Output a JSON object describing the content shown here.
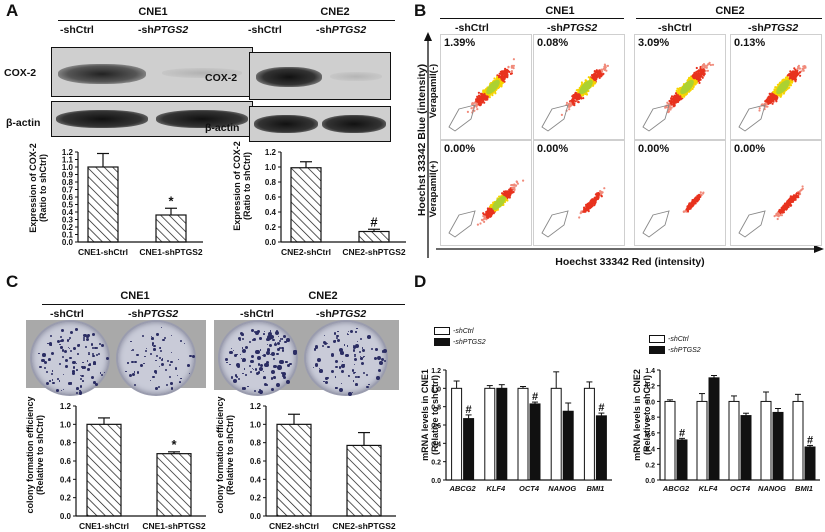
{
  "panels": {
    "a": "A",
    "b": "B",
    "c": "C",
    "d": "D"
  },
  "panel_a": {
    "cne1": {
      "group": "CNE1",
      "col1": "-shCtrl",
      "col2_prefix": "-sh",
      "col2_gene": "PTGS2",
      "row1": "COX-2",
      "row2": "β-actin"
    },
    "cne2": {
      "group": "CNE2",
      "col1": "-shCtrl",
      "col2_prefix": "-sh",
      "col2_gene": "PTGS2",
      "row1": "COX-2",
      "row2": "β-actin"
    },
    "ylabel_line1": "Expression of COX-2",
    "ylabel_line2": "(Ratio to shCtrl)"
  },
  "panel_b": {
    "group1": "CNE1",
    "group2": "CNE2",
    "cols": [
      "-shCtrl",
      "-shPTGS2",
      "-shCtrl",
      "-shPTGS2"
    ],
    "col_prefix": "-sh",
    "col_gene": "PTGS2",
    "col_ctrl": "-shCtrl",
    "row_top": "Verapamil(-)",
    "row_bottom": "Verapamil(+)",
    "yaxis": "Hoechst 33342 Blue (intensity)",
    "xaxis": "Hoechst 33342 Red (intensity)",
    "pct_top": [
      "1.39%",
      "0.08%",
      "3.09%",
      "0.13%"
    ],
    "pct_bottom": [
      "0.00%",
      "0.00%",
      "0.00%",
      "0.00%"
    ]
  },
  "panel_c": {
    "cne1": {
      "group": "CNE1",
      "col1": "-shCtrl",
      "col2_prefix": "-sh",
      "col2_gene": "PTGS2"
    },
    "cne2": {
      "group": "CNE2",
      "col1": "-shCtrl",
      "col2_prefix": "-sh",
      "col2_gene": "PTGS2"
    },
    "ylabel_line1": "colony formation efficiency",
    "ylabel_line2": "(Relative to shCtrl)"
  },
  "panel_d": {
    "legend_ctrl": "-shCtrl",
    "legend_sh": "-shPTGS2",
    "ylabel_cne1_line1": "mRNA levels in CNE1",
    "ylabel_cne2_line1": "mRNA levels in CNE2",
    "ylabel_line2": "(Relative to shCtrl)"
  },
  "chart_data": [
    {
      "id": "a_cne1",
      "type": "bar",
      "categories": [
        "CNE1-shCtrl",
        "CNE1-shPTGS2"
      ],
      "values": [
        1.0,
        0.36
      ],
      "errors": [
        0.18,
        0.09
      ],
      "marks": [
        "",
        "*"
      ],
      "ylim": [
        0.0,
        1.2
      ],
      "yticks": [
        "0.0",
        "0.1",
        "0.2",
        "0.3",
        "0.4",
        "0.5",
        "0.6",
        "0.7",
        "0.8",
        "0.9",
        "1.0",
        "1.1",
        "1.2"
      ],
      "ylabel": "Expression of COX-2 (Ratio to shCtrl)"
    },
    {
      "id": "a_cne2",
      "type": "bar",
      "categories": [
        "CNE2-shCtrl",
        "CNE2-shPTGS2"
      ],
      "values": [
        0.99,
        0.14
      ],
      "errors": [
        0.08,
        0.03
      ],
      "marks": [
        "",
        "#"
      ],
      "ylim": [
        0.0,
        1.2
      ],
      "yticks": [
        "0.0",
        "0.2",
        "0.4",
        "0.6",
        "0.8",
        "1.0",
        "1.2"
      ],
      "ylabel": "Expression of COX-2 (Ratio to shCtrl)"
    },
    {
      "id": "c_cne1",
      "type": "bar",
      "categories": [
        "CNE1-shCtrl",
        "CNE1-shPTGS2"
      ],
      "values": [
        1.0,
        0.68
      ],
      "errors": [
        0.07,
        0.02
      ],
      "marks": [
        "",
        "*"
      ],
      "ylim": [
        0.0,
        1.2
      ],
      "yticks": [
        "0.0",
        "0.2",
        "0.4",
        "0.6",
        "0.8",
        "1.0",
        "1.2"
      ],
      "ylabel": "colony formation efficiency (Relative to shCtrl)"
    },
    {
      "id": "c_cne2",
      "type": "bar",
      "categories": [
        "CNE2-shCtrl",
        "CNE2-shPTGS2"
      ],
      "values": [
        1.0,
        0.77
      ],
      "errors": [
        0.11,
        0.14
      ],
      "marks": [
        "",
        ""
      ],
      "ylim": [
        0.0,
        1.2
      ],
      "yticks": [
        "0.0",
        "0.2",
        "0.4",
        "0.6",
        "0.8",
        "1.0",
        "1.2"
      ],
      "ylabel": "colony formation efficiency (Relative to shCtrl)"
    },
    {
      "id": "d_cne1",
      "type": "bar",
      "categories": [
        "ABCG2",
        "KLF4",
        "OCT4",
        "NANOG",
        "BMI1"
      ],
      "series": [
        {
          "name": "-shCtrl",
          "values": [
            1.0,
            1.0,
            1.0,
            1.0,
            1.0
          ],
          "errors": [
            0.08,
            0.03,
            0.02,
            0.18,
            0.07
          ],
          "marks": [
            "",
            "",
            "",
            "",
            ""
          ]
        },
        {
          "name": "-shPTGS2",
          "values": [
            0.67,
            1.0,
            0.83,
            0.75,
            0.7
          ],
          "errors": [
            0.04,
            0.04,
            0.02,
            0.09,
            0.03
          ],
          "marks": [
            "#",
            "",
            "#",
            "",
            "#"
          ]
        }
      ],
      "ylim": [
        0.0,
        1.2
      ],
      "yticks": [
        "0.0",
        "0.2",
        "0.4",
        "0.6",
        "0.8",
        "1.0",
        "1.2"
      ],
      "ylabel": "mRNA levels in CNE1 (Relative to shCtrl)"
    },
    {
      "id": "d_cne2",
      "type": "bar",
      "categories": [
        "ABCG2",
        "KLF4",
        "OCT4",
        "NANOG",
        "BMI1"
      ],
      "series": [
        {
          "name": "-shCtrl",
          "values": [
            1.0,
            1.0,
            1.0,
            1.0,
            1.0
          ],
          "errors": [
            0.02,
            0.1,
            0.07,
            0.12,
            0.09
          ],
          "marks": [
            "",
            "",
            "",
            "",
            ""
          ]
        },
        {
          "name": "-shPTGS2",
          "values": [
            0.51,
            1.3,
            0.82,
            0.86,
            0.42
          ],
          "errors": [
            0.02,
            0.03,
            0.03,
            0.05,
            0.02
          ],
          "marks": [
            "#",
            "",
            "",
            "",
            "#"
          ]
        }
      ],
      "ylim": [
        0.0,
        1.4
      ],
      "yticks": [
        "0.0",
        "0.2",
        "0.4",
        "0.6",
        "0.8",
        "1.0",
        "1.2",
        "1.4"
      ],
      "ylabel": "mRNA levels in CNE2 (Relative to shCtrl)"
    }
  ]
}
